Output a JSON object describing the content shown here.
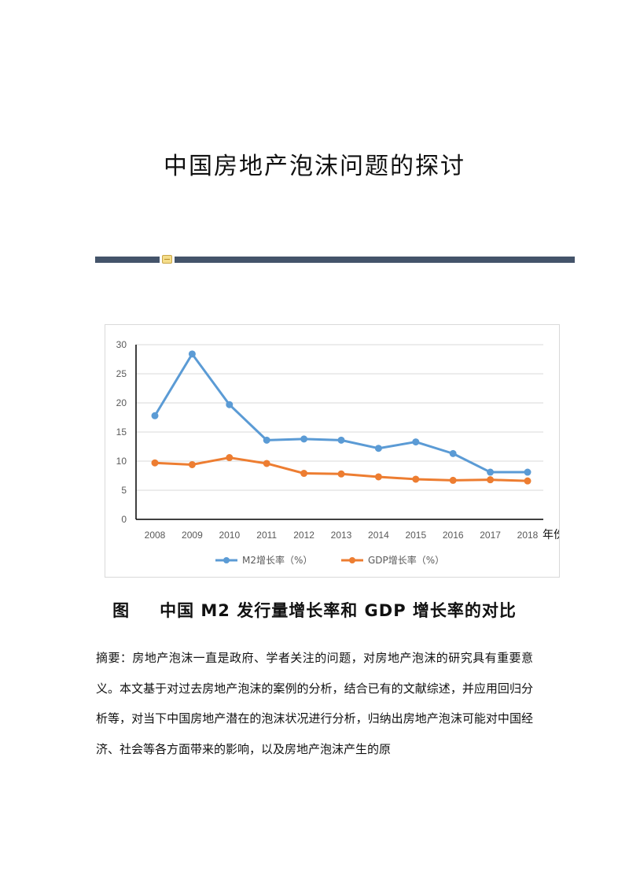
{
  "title": "中国房地产泡沫问题的探讨",
  "figure": {
    "label": "图",
    "caption": "中国 M2 发行量增长率和 GDP 增长率的对比"
  },
  "abstract": {
    "label": "摘要：",
    "text": "房地产泡沫一直是政府、学者关注的问题，对房地产泡沫的研究具有重要意义。本文基于对过去房地产泡沫的案例的分析，结合已有的文献综述，并应用回归分析等，对当下中国房地产潜在的泡沫状况进行分析，归纳出房地产泡沫可能对中国经济、社会等各方面带来的影响，以及房地产泡沫产生的原"
  },
  "colors": {
    "m2": "#5b9bd5",
    "gdp": "#ed7d31",
    "divider": "#44546a"
  },
  "chart_data": {
    "type": "line",
    "x": [
      "2008",
      "2009",
      "2010",
      "2011",
      "2012",
      "2013",
      "2014",
      "2015",
      "2016",
      "2017",
      "2018"
    ],
    "xlabel_suffix": "年份",
    "yticks": [
      "0",
      "5",
      "10",
      "15",
      "20",
      "25",
      "30"
    ],
    "ylim": [
      0,
      30
    ],
    "grid": true,
    "legend": "bottom",
    "series": [
      {
        "name": "M2增长率（%）",
        "values": [
          17.8,
          28.4,
          19.7,
          13.6,
          13.8,
          13.6,
          12.2,
          13.3,
          11.3,
          8.1,
          8.1
        ]
      },
      {
        "name": "GDP增长率（%）",
        "values": [
          9.7,
          9.4,
          10.6,
          9.6,
          7.9,
          7.8,
          7.3,
          6.9,
          6.7,
          6.8,
          6.6
        ]
      }
    ]
  }
}
